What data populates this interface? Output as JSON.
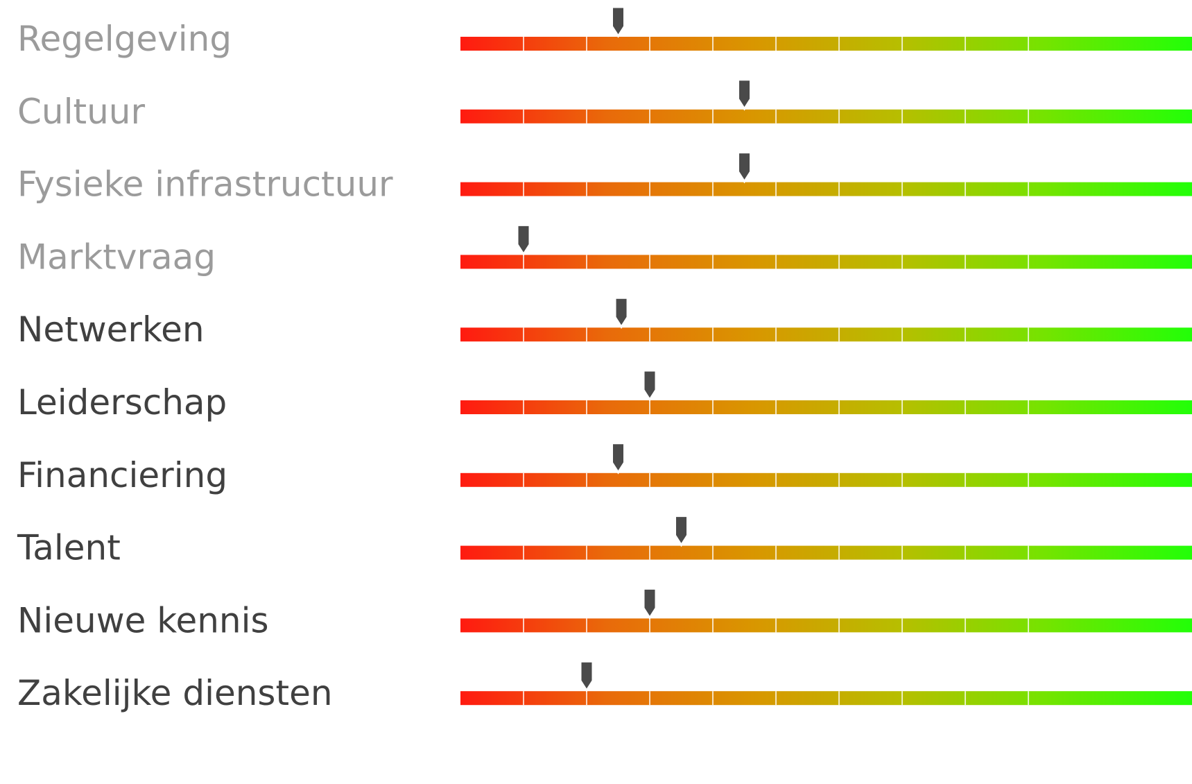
{
  "chart_data": {
    "type": "bar",
    "scale": [
      0,
      100
    ],
    "segments": 10,
    "gradient_colors": [
      "#ff1a10",
      "#e96a0a",
      "#d99600",
      "#b7be00",
      "#74e400",
      "#22ff08"
    ],
    "faded_label_color": "#9b9b9b",
    "strong_label_color": "#404040",
    "marker_color": "#4a4a4a",
    "rows": [
      {
        "label": "Regelgeving",
        "value": 25,
        "faded": true
      },
      {
        "label": "Cultuur",
        "value": 45,
        "faded": true
      },
      {
        "label": "Fysieke infrastructuur",
        "value": 45,
        "faded": true
      },
      {
        "label": "Marktvraag",
        "value": 10,
        "faded": true
      },
      {
        "label": "Netwerken",
        "value": 25.5,
        "faded": false
      },
      {
        "label": "Leiderschap",
        "value": 30,
        "faded": false
      },
      {
        "label": "Financiering",
        "value": 25,
        "faded": false
      },
      {
        "label": "Talent",
        "value": 35,
        "faded": false
      },
      {
        "label": "Nieuwe kennis",
        "value": 30,
        "faded": false
      },
      {
        "label": "Zakelijke diensten",
        "value": 20,
        "faded": false
      }
    ]
  }
}
